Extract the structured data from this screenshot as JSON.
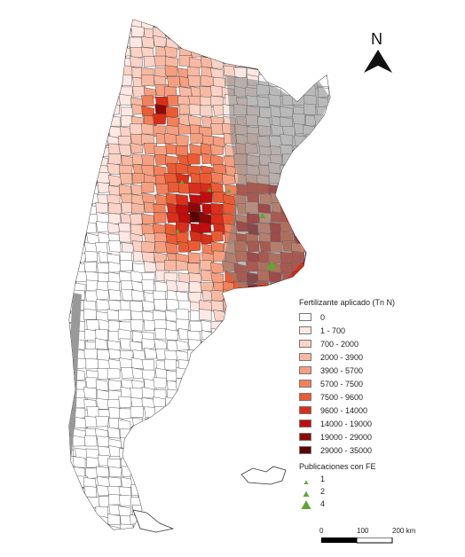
{
  "legend": {
    "title": "Fertilizante aplicado (Tn N)",
    "classes": [
      {
        "label": "0",
        "color": "#ffffff"
      },
      {
        "label": "1 - 700",
        "color": "#fde8e3"
      },
      {
        "label": "700 - 2000",
        "color": "#fbd3c6"
      },
      {
        "label": "2000 - 3900",
        "color": "#f8b9a2"
      },
      {
        "label": "3900 - 5700",
        "color": "#f59f80"
      },
      {
        "label": "5700 - 7500",
        "color": "#f1805b"
      },
      {
        "label": "7500 - 9600",
        "color": "#eb5b33"
      },
      {
        "label": "9600 - 14000",
        "color": "#d92e1a"
      },
      {
        "label": "14000 - 19000",
        "color": "#c10d0d"
      },
      {
        "label": "19000 - 29000",
        "color": "#8e0808"
      },
      {
        "label": "29000 - 35000",
        "color": "#5c0404"
      }
    ]
  },
  "publications": {
    "title": "Publicaciones con FE",
    "items": [
      {
        "label": "1",
        "value": 1
      },
      {
        "label": "2",
        "value": 2
      },
      {
        "label": "4",
        "value": 4
      }
    ],
    "color": "#5aa832"
  },
  "north_arrow": {
    "label": "N",
    "icon": "north-arrow-icon"
  },
  "scale": {
    "labels": [
      "0",
      "100",
      "200 km"
    ]
  },
  "colors": {
    "gray_overlay": "#808080",
    "boundary": "#333333",
    "land": "#ffffff"
  }
}
